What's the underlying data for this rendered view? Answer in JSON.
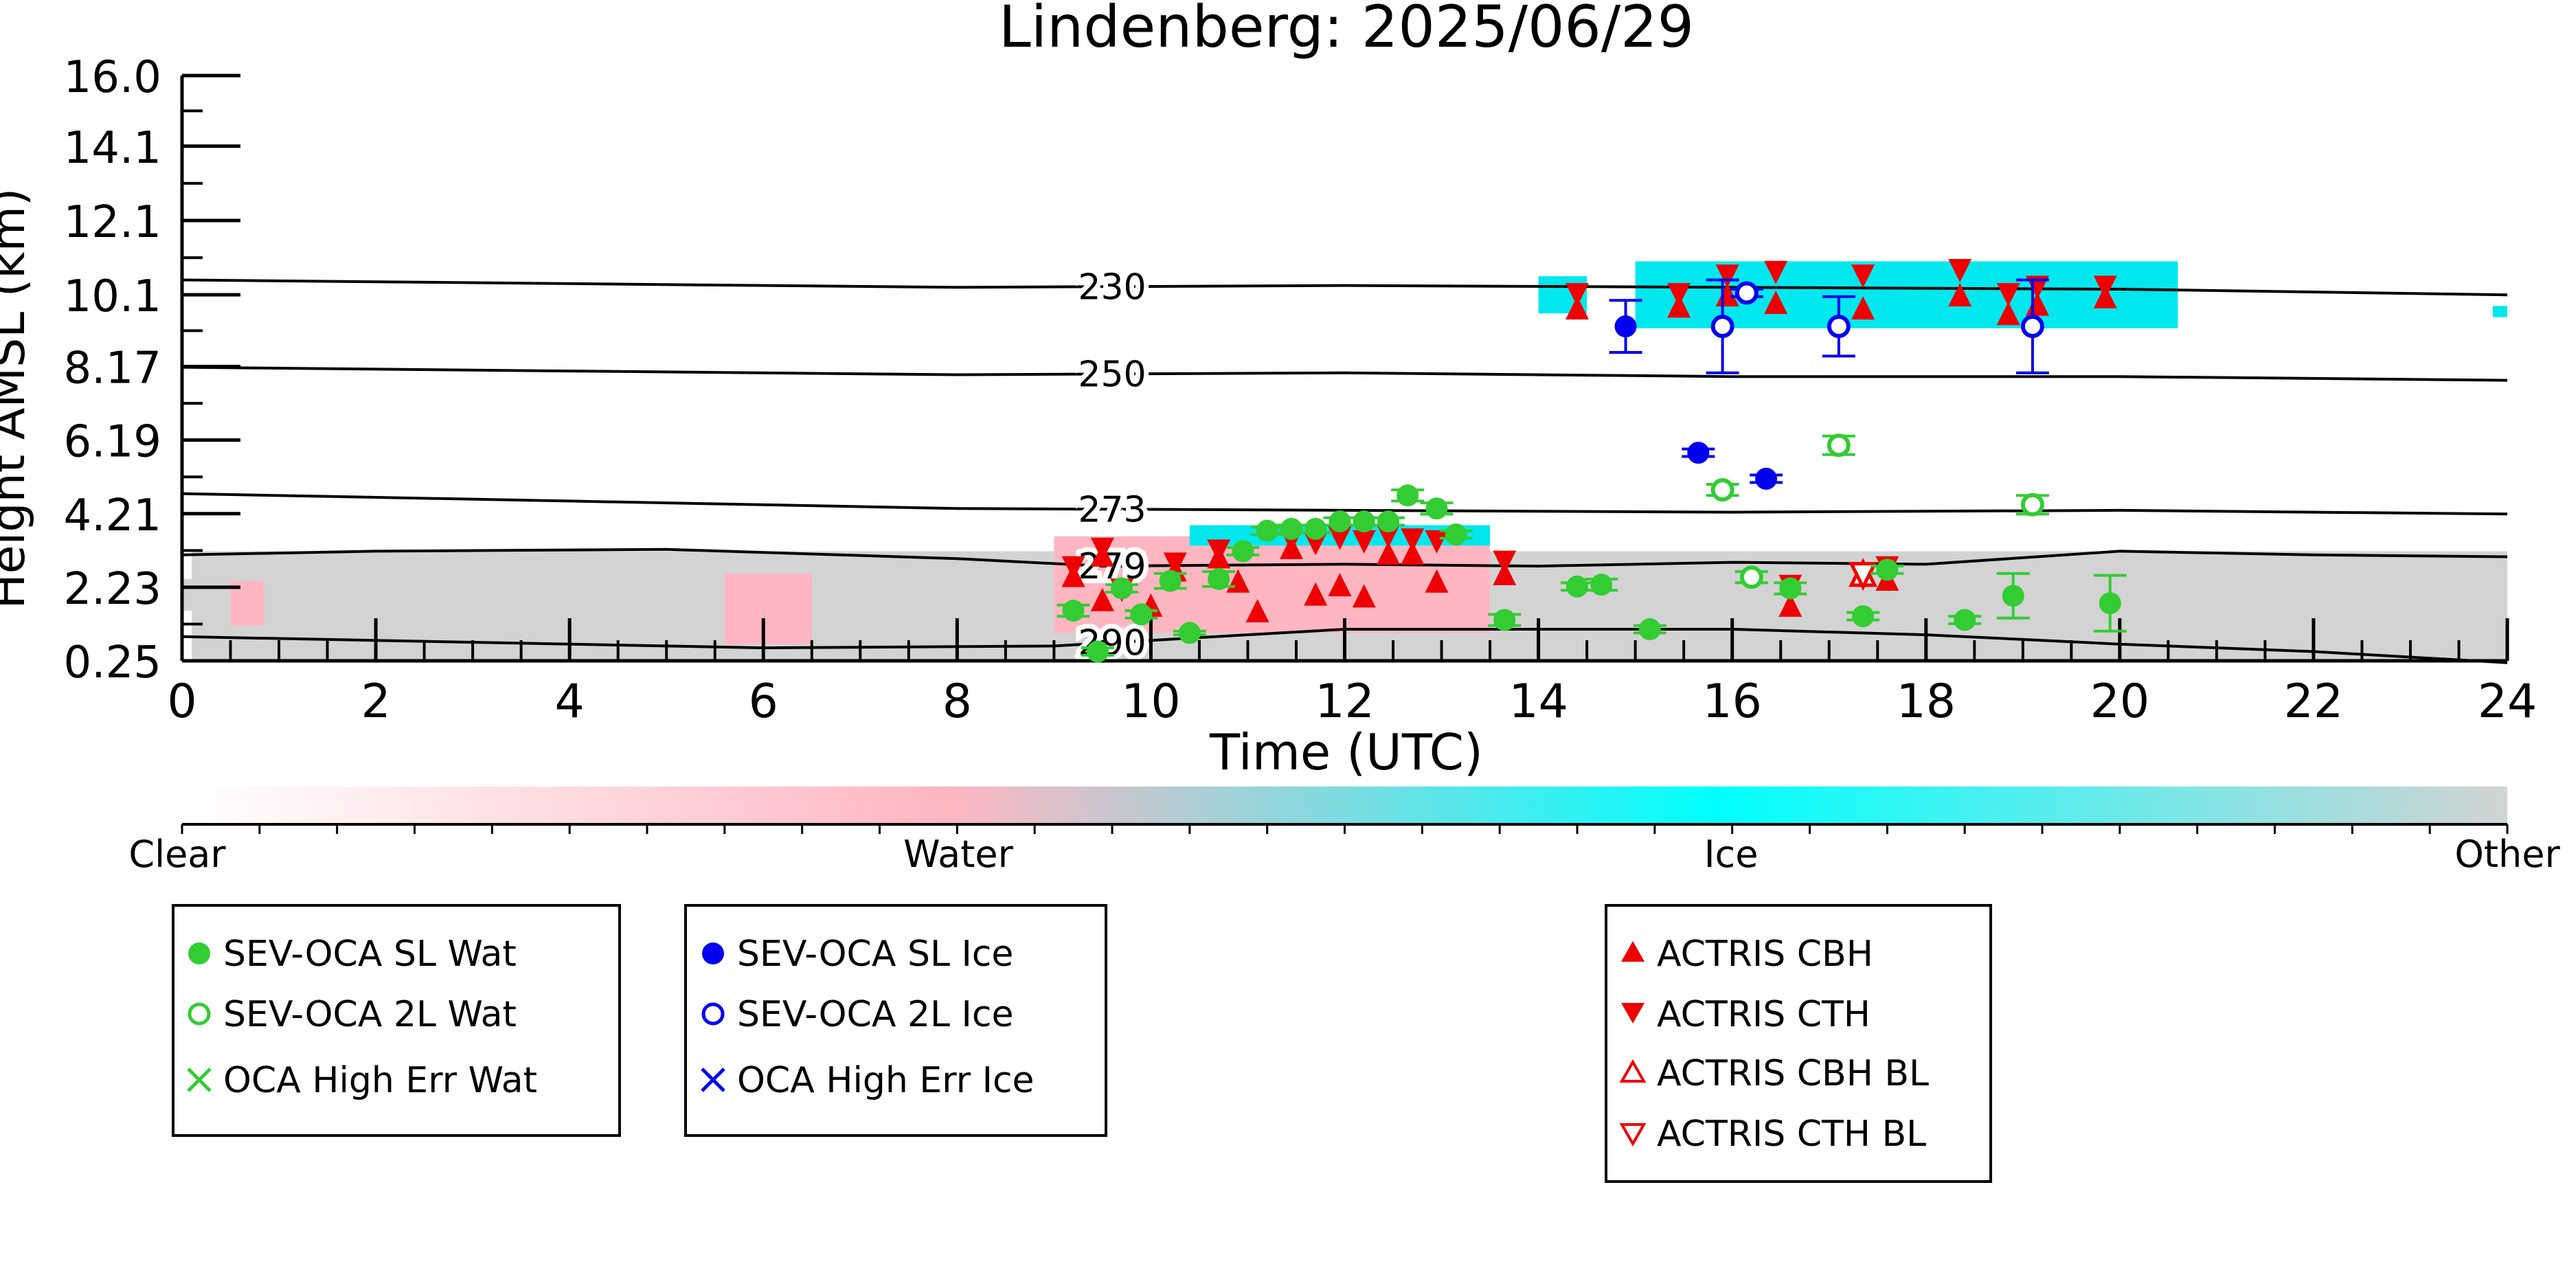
{
  "chart_data": {
    "type": "scatter",
    "title": "Lindenberg: 2025/06/29",
    "xlabel": "Time (UTC)",
    "ylabel": "Height AMSL (km)",
    "xlim": [
      0,
      24
    ],
    "ylim": [
      0.25,
      16.0
    ],
    "x_ticks": [
      "0",
      "2",
      "4",
      "6",
      "8",
      "10",
      "12",
      "14",
      "16",
      "18",
      "20",
      "22",
      "24"
    ],
    "y_ticks": [
      "0.25",
      "2.23",
      "4.21",
      "6.19",
      "8.17",
      "10.1",
      "12.1",
      "14.1",
      "16.0"
    ],
    "colorbar": {
      "labels": [
        "Clear",
        "Water",
        "Ice",
        "Other"
      ],
      "colors": [
        "#ffffff",
        "#ffb6c1",
        "#00ffff",
        "#d3d3d3"
      ]
    },
    "isotherms": [
      {
        "label": "230",
        "points": [
          [
            0,
            10.5
          ],
          [
            4,
            10.4
          ],
          [
            8,
            10.3
          ],
          [
            12,
            10.35
          ],
          [
            16,
            10.3
          ],
          [
            20,
            10.25
          ],
          [
            24,
            10.1
          ]
        ]
      },
      {
        "label": "250",
        "points": [
          [
            0,
            8.15
          ],
          [
            4,
            8.05
          ],
          [
            8,
            7.95
          ],
          [
            12,
            8.0
          ],
          [
            16,
            7.9
          ],
          [
            20,
            7.9
          ],
          [
            24,
            7.8
          ]
        ]
      },
      {
        "label": "273",
        "points": [
          [
            0,
            4.75
          ],
          [
            4,
            4.55
          ],
          [
            8,
            4.35
          ],
          [
            12,
            4.3
          ],
          [
            16,
            4.25
          ],
          [
            20,
            4.3
          ],
          [
            24,
            4.2
          ]
        ]
      },
      {
        "label": "279",
        "points": [
          [
            0,
            3.1
          ],
          [
            2,
            3.2
          ],
          [
            5,
            3.25
          ],
          [
            8,
            3.0
          ],
          [
            9.5,
            2.8
          ],
          [
            12,
            2.85
          ],
          [
            14,
            2.8
          ],
          [
            16,
            2.9
          ],
          [
            18,
            2.85
          ],
          [
            20,
            3.2
          ],
          [
            22,
            3.1
          ],
          [
            24,
            3.05
          ]
        ]
      },
      {
        "label": "290",
        "points": [
          [
            0,
            0.9
          ],
          [
            3,
            0.75
          ],
          [
            6,
            0.6
          ],
          [
            9,
            0.65
          ],
          [
            10,
            0.8
          ],
          [
            12,
            1.1
          ],
          [
            14,
            1.1
          ],
          [
            16,
            1.1
          ],
          [
            18,
            0.95
          ],
          [
            20,
            0.7
          ],
          [
            22,
            0.5
          ],
          [
            24,
            0.2
          ]
        ]
      }
    ],
    "legend": [
      {
        "label": "SEV-OCA SL Wat",
        "marker": "filled-circle",
        "color": "#33cc33"
      },
      {
        "label": "SEV-OCA 2L Wat",
        "marker": "open-circle",
        "color": "#33cc33"
      },
      {
        "label": "OCA High Err Wat",
        "marker": "x",
        "color": "#33cc33"
      },
      {
        "label": "SEV-OCA SL Ice",
        "marker": "filled-circle",
        "color": "#0000ee"
      },
      {
        "label": "SEV-OCA 2L Ice",
        "marker": "open-circle",
        "color": "#0000ee"
      },
      {
        "label": "OCA High Err Ice",
        "marker": "x",
        "color": "#0000ee"
      },
      {
        "label": "ACTRIS CBH",
        "marker": "triangle-up",
        "color": "#ee0000"
      },
      {
        "label": "ACTRIS CTH",
        "marker": "triangle-down",
        "color": "#ee0000"
      },
      {
        "label": "ACTRIS CBH BL",
        "marker": "open-triangle-up",
        "color": "#ee0000"
      },
      {
        "label": "ACTRIS CTH BL",
        "marker": "open-triangle-down",
        "color": "#ee0000"
      }
    ],
    "series": [
      {
        "name": "SEV-OCA SL Wat",
        "points": [
          {
            "x": 9.2,
            "y": 1.6,
            "err": 0.15
          },
          {
            "x": 9.45,
            "y": 0.5,
            "err": 0.1
          },
          {
            "x": 9.7,
            "y": 2.2,
            "err": 0.1
          },
          {
            "x": 9.9,
            "y": 1.5,
            "err": 0.1
          },
          {
            "x": 10.2,
            "y": 2.4,
            "err": 0.2
          },
          {
            "x": 10.4,
            "y": 1.0,
            "err": 0.05
          },
          {
            "x": 10.7,
            "y": 2.45,
            "err": 0.2
          },
          {
            "x": 10.95,
            "y": 3.2,
            "err": 0.1
          },
          {
            "x": 11.2,
            "y": 3.75,
            "err": 0.1
          },
          {
            "x": 11.45,
            "y": 3.8,
            "err": 0.1
          },
          {
            "x": 11.7,
            "y": 3.8,
            "err": 0.1
          },
          {
            "x": 11.95,
            "y": 4.0,
            "err": 0.1
          },
          {
            "x": 12.2,
            "y": 4.0,
            "err": 0.1
          },
          {
            "x": 12.45,
            "y": 4.0,
            "err": 0.1
          },
          {
            "x": 12.65,
            "y": 4.7,
            "err": 0.15
          },
          {
            "x": 12.95,
            "y": 4.35,
            "err": 0.15
          },
          {
            "x": 13.15,
            "y": 3.65,
            "err": 0.1
          },
          {
            "x": 13.65,
            "y": 1.35,
            "err": 0.15
          },
          {
            "x": 14.4,
            "y": 2.25,
            "err": 0.1
          },
          {
            "x": 14.65,
            "y": 2.3,
            "err": 0.15
          },
          {
            "x": 15.15,
            "y": 1.1,
            "err": 0.1
          },
          {
            "x": 16.6,
            "y": 2.2,
            "err": 0.15
          },
          {
            "x": 17.35,
            "y": 1.45,
            "err": 0.1
          },
          {
            "x": 17.6,
            "y": 2.7,
            "err": 0.1
          },
          {
            "x": 18.4,
            "y": 1.35,
            "err": 0.1
          },
          {
            "x": 18.9,
            "y": 2.0,
            "err": 0.6
          },
          {
            "x": 19.9,
            "y": 1.8,
            "err": 0.75
          }
        ]
      },
      {
        "name": "SEV-OCA 2L Wat",
        "points": [
          {
            "x": 15.9,
            "y": 4.85,
            "err": 0.15
          },
          {
            "x": 16.2,
            "y": 2.5,
            "err": 0.15
          },
          {
            "x": 17.1,
            "y": 6.05,
            "err": 0.25
          },
          {
            "x": 19.1,
            "y": 4.45,
            "err": 0.25
          }
        ]
      },
      {
        "name": "SEV-OCA SL Ice",
        "points": [
          {
            "x": 14.9,
            "y": 9.25,
            "err": 0.7
          },
          {
            "x": 15.65,
            "y": 5.85,
            "err": 0.1
          },
          {
            "x": 16.35,
            "y": 5.15,
            "err": 0.1
          }
        ]
      },
      {
        "name": "SEV-OCA 2L Ice",
        "points": [
          {
            "x": 15.9,
            "y": 9.25,
            "err": 1.25
          },
          {
            "x": 16.15,
            "y": 10.15,
            "err": 0.1
          },
          {
            "x": 17.1,
            "y": 9.25,
            "err": 0.8
          },
          {
            "x": 19.1,
            "y": 9.25,
            "err": 1.25
          }
        ]
      },
      {
        "name": "ACTRIS CBH",
        "points": [
          {
            "x": 9.2,
            "y": 2.55
          },
          {
            "x": 9.5,
            "y": 1.9
          },
          {
            "x": 9.5,
            "y": 3.1
          },
          {
            "x": 10.0,
            "y": 1.75
          },
          {
            "x": 10.25,
            "y": 2.7
          },
          {
            "x": 10.7,
            "y": 3.05
          },
          {
            "x": 10.9,
            "y": 2.4
          },
          {
            "x": 11.1,
            "y": 1.6
          },
          {
            "x": 11.45,
            "y": 3.3
          },
          {
            "x": 11.7,
            "y": 2.05
          },
          {
            "x": 11.95,
            "y": 2.3
          },
          {
            "x": 12.2,
            "y": 2.0
          },
          {
            "x": 12.45,
            "y": 3.15
          },
          {
            "x": 12.7,
            "y": 3.15
          },
          {
            "x": 12.95,
            "y": 2.4
          },
          {
            "x": 13.65,
            "y": 2.6
          },
          {
            "x": 14.4,
            "y": 9.75
          },
          {
            "x": 15.45,
            "y": 9.8
          },
          {
            "x": 15.95,
            "y": 10.1
          },
          {
            "x": 16.45,
            "y": 9.9
          },
          {
            "x": 16.6,
            "y": 1.75
          },
          {
            "x": 17.35,
            "y": 9.75
          },
          {
            "x": 17.6,
            "y": 2.45
          },
          {
            "x": 18.35,
            "y": 10.1
          },
          {
            "x": 18.85,
            "y": 9.6
          },
          {
            "x": 19.15,
            "y": 9.85
          },
          {
            "x": 19.85,
            "y": 10.05
          }
        ]
      },
      {
        "name": "ACTRIS CTH",
        "points": [
          {
            "x": 9.2,
            "y": 2.75
          },
          {
            "x": 9.5,
            "y": 3.25
          },
          {
            "x": 9.7,
            "y": 2.15
          },
          {
            "x": 10.25,
            "y": 2.85
          },
          {
            "x": 10.7,
            "y": 3.2
          },
          {
            "x": 11.45,
            "y": 3.5
          },
          {
            "x": 11.7,
            "y": 3.4
          },
          {
            "x": 11.95,
            "y": 3.55
          },
          {
            "x": 12.2,
            "y": 3.45
          },
          {
            "x": 12.45,
            "y": 3.6
          },
          {
            "x": 12.7,
            "y": 3.5
          },
          {
            "x": 12.95,
            "y": 3.45
          },
          {
            "x": 13.65,
            "y": 2.9
          },
          {
            "x": 14.4,
            "y": 10.1
          },
          {
            "x": 15.45,
            "y": 10.1
          },
          {
            "x": 15.95,
            "y": 10.6
          },
          {
            "x": 16.45,
            "y": 10.7
          },
          {
            "x": 16.6,
            "y": 2.25
          },
          {
            "x": 17.35,
            "y": 10.6
          },
          {
            "x": 17.6,
            "y": 2.75
          },
          {
            "x": 18.35,
            "y": 10.75
          },
          {
            "x": 18.85,
            "y": 10.1
          },
          {
            "x": 19.15,
            "y": 10.3
          },
          {
            "x": 19.85,
            "y": 10.3
          }
        ]
      },
      {
        "name": "ACTRIS CBH BL",
        "points": [
          {
            "x": 17.35,
            "y": 2.6
          }
        ]
      },
      {
        "name": "ACTRIS CTH BL",
        "points": [
          {
            "x": 17.35,
            "y": 2.55
          }
        ]
      }
    ]
  }
}
